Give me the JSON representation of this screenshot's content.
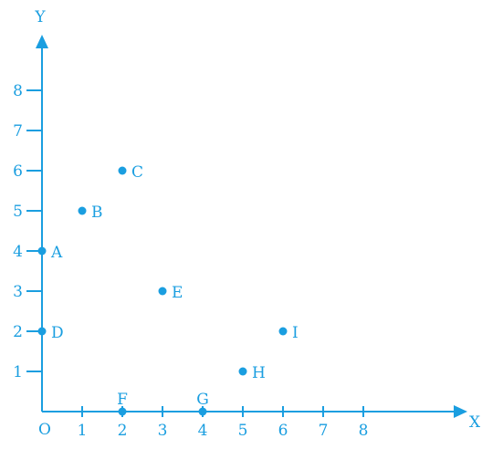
{
  "chart_data": {
    "type": "scatter",
    "xlabel": "X",
    "ylabel": "Y",
    "origin_label": "O",
    "xlim": [
      0,
      10
    ],
    "ylim": [
      0,
      9
    ],
    "x_ticks": [
      "1",
      "2",
      "3",
      "4",
      "5",
      "6",
      "7",
      "8"
    ],
    "y_ticks": [
      "1",
      "2",
      "3",
      "4",
      "5",
      "6",
      "7",
      "8"
    ],
    "grid": false,
    "points": [
      {
        "label": "A",
        "x": 0,
        "y": 4
      },
      {
        "label": "B",
        "x": 1,
        "y": 5
      },
      {
        "label": "C",
        "x": 2,
        "y": 6
      },
      {
        "label": "D",
        "x": 0,
        "y": 2
      },
      {
        "label": "E",
        "x": 3,
        "y": 3
      },
      {
        "label": "F",
        "x": 2,
        "y": 0
      },
      {
        "label": "G",
        "x": 4,
        "y": 0
      },
      {
        "label": "H",
        "x": 5,
        "y": 1
      },
      {
        "label": "I",
        "x": 6,
        "y": 2
      }
    ],
    "colors": {
      "accent": "#1a9ee0"
    }
  }
}
